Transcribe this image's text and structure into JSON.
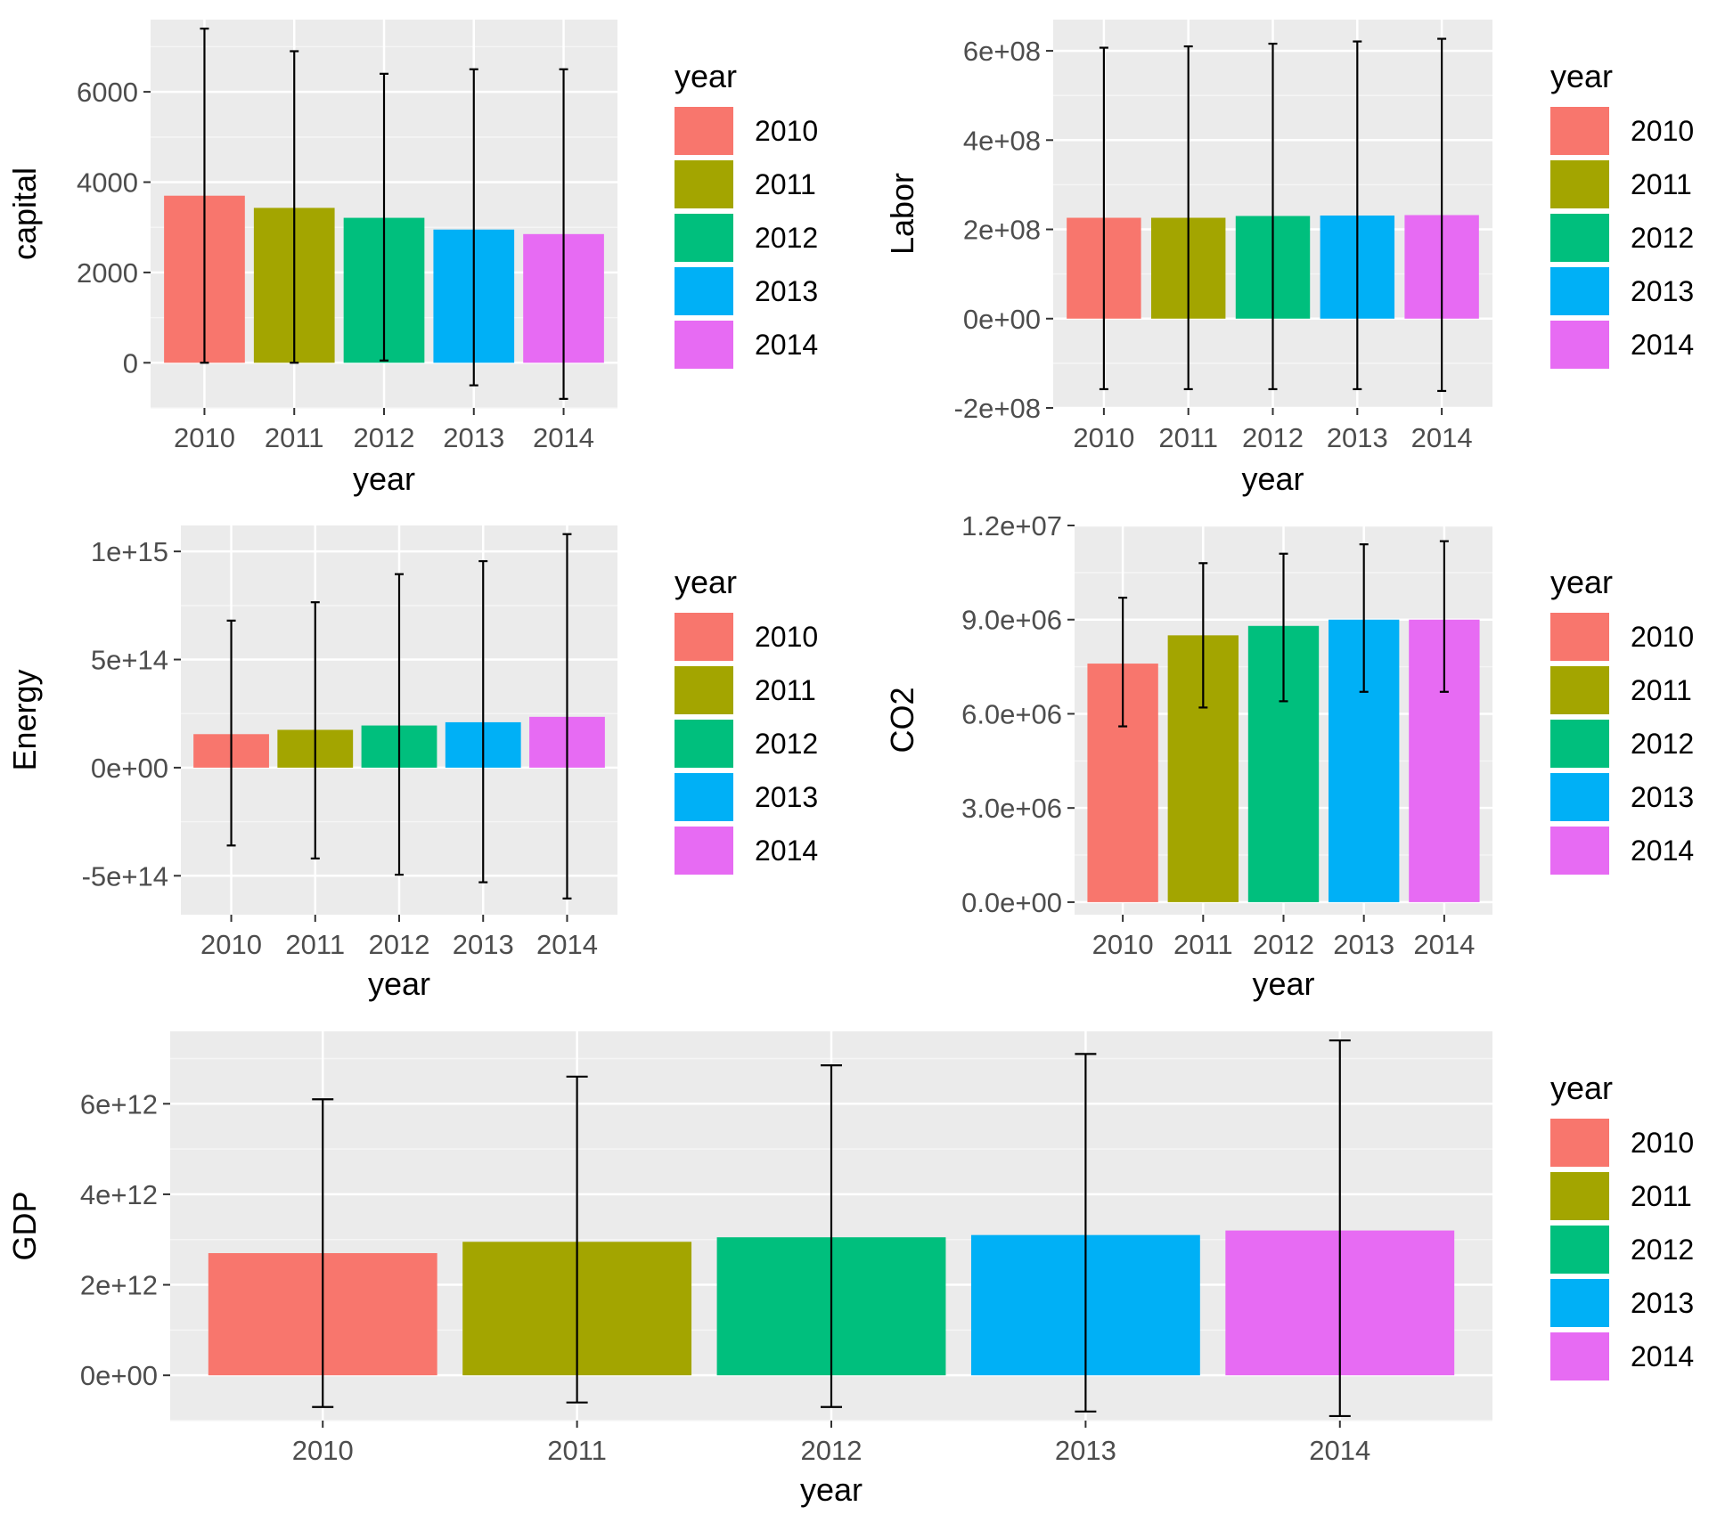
{
  "colors": [
    "#F8766D",
    "#A3A500",
    "#00BF7D",
    "#00B0F6",
    "#E76BF3"
  ],
  "chart_data": [
    {
      "id": "capital",
      "type": "bar",
      "title": "",
      "xlabel": "year",
      "ylabel": "capital",
      "categories": [
        "2010",
        "2011",
        "2012",
        "2013",
        "2014"
      ],
      "values": [
        3700,
        3430,
        3210,
        2950,
        2850
      ],
      "error_low": [
        0,
        0,
        50,
        -500,
        -800
      ],
      "error_high": [
        7400,
        6900,
        6400,
        6500,
        6500
      ],
      "ylim": [
        -1000,
        7600
      ],
      "yticks": [
        0,
        2000,
        4000,
        6000
      ],
      "ytick_labels": [
        "0",
        "2000",
        "4000",
        "6000"
      ],
      "legend": {
        "title": "year",
        "labels": [
          "2010",
          "2011",
          "2012",
          "2013",
          "2014"
        ]
      }
    },
    {
      "id": "labor",
      "type": "bar",
      "title": "",
      "xlabel": "year",
      "ylabel": "Labor",
      "categories": [
        "2010",
        "2011",
        "2012",
        "2013",
        "2014"
      ],
      "values": [
        226000000,
        226000000,
        230000000,
        231000000,
        232000000
      ],
      "error_low": [
        -158000000,
        -158000000,
        -158000000,
        -158000000,
        -162000000
      ],
      "error_high": [
        607000000,
        610000000,
        616000000,
        621000000,
        627000000
      ],
      "ylim": [
        -200000000,
        670000000
      ],
      "yticks": [
        -200000000,
        0,
        200000000,
        400000000,
        600000000
      ],
      "ytick_labels": [
        "-2e+08",
        "0e+00",
        "2e+08",
        "4e+08",
        "6e+08"
      ],
      "legend": {
        "title": "year",
        "labels": [
          "2010",
          "2011",
          "2012",
          "2013",
          "2014"
        ]
      }
    },
    {
      "id": "energy",
      "type": "bar",
      "title": "",
      "xlabel": "year",
      "ylabel": "Energy",
      "categories": [
        "2010",
        "2011",
        "2012",
        "2013",
        "2014"
      ],
      "values": [
        155000000000000,
        175000000000000,
        195000000000000,
        210000000000000,
        235000000000000
      ],
      "error_low": [
        -360000000000000,
        -420000000000000,
        -495000000000000,
        -530000000000000,
        -605000000000000
      ],
      "error_high": [
        680000000000000,
        765000000000000,
        895000000000000,
        955000000000000,
        1080000000000000
      ],
      "ylim": [
        -680000000000000,
        1120000000000000
      ],
      "yticks": [
        -500000000000000,
        0,
        500000000000000,
        1000000000000000
      ],
      "ytick_labels": [
        "-5e+14",
        "0e+00",
        "5e+14",
        "1e+15"
      ],
      "legend": {
        "title": "year",
        "labels": [
          "2010",
          "2011",
          "2012",
          "2013",
          "2014"
        ]
      }
    },
    {
      "id": "co2",
      "type": "bar",
      "title": "",
      "xlabel": "year",
      "ylabel": "CO2",
      "categories": [
        "2010",
        "2011",
        "2012",
        "2013",
        "2014"
      ],
      "values": [
        7600000,
        8500000,
        8800000,
        9000000,
        9000000
      ],
      "error_low": [
        5600000,
        6200000,
        6400000,
        6700000,
        6700000
      ],
      "error_high": [
        9700000,
        10800000,
        11100000,
        11400000,
        11500000
      ],
      "ylim": [
        -400000,
        12000000
      ],
      "yticks": [
        0,
        3000000,
        6000000,
        9000000,
        12000000
      ],
      "ytick_labels": [
        "0.0e+00",
        "3.0e+06",
        "6.0e+06",
        "9.0e+06",
        "1.2e+07"
      ],
      "legend": {
        "title": "year",
        "labels": [
          "2010",
          "2011",
          "2012",
          "2013",
          "2014"
        ]
      }
    },
    {
      "id": "gdp",
      "type": "bar",
      "title": "",
      "xlabel": "year",
      "ylabel": "GDP",
      "categories": [
        "2010",
        "2011",
        "2012",
        "2013",
        "2014"
      ],
      "values": [
        2700000000000,
        2950000000000,
        3050000000000,
        3100000000000,
        3200000000000
      ],
      "error_low": [
        -700000000000,
        -600000000000,
        -700000000000,
        -800000000000,
        -900000000000
      ],
      "error_high": [
        6100000000000,
        6600000000000,
        6850000000000,
        7100000000000,
        7400000000000
      ],
      "ylim": [
        -1000000000000,
        7600000000000
      ],
      "yticks": [
        0,
        2000000000000,
        4000000000000,
        6000000000000
      ],
      "ytick_labels": [
        "0e+00",
        "2e+12",
        "4e+12",
        "6e+12"
      ],
      "legend": {
        "title": "year",
        "labels": [
          "2010",
          "2011",
          "2012",
          "2013",
          "2014"
        ]
      }
    }
  ]
}
